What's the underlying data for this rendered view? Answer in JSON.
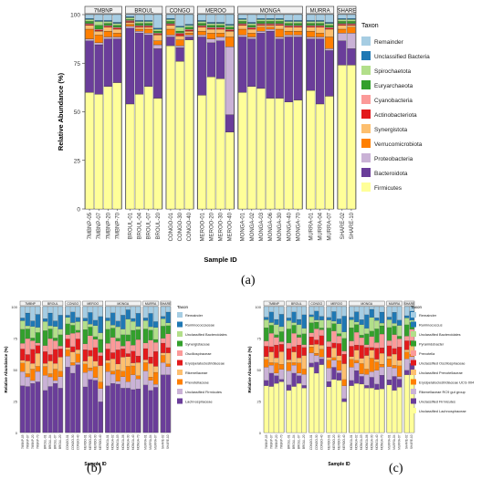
{
  "panel_labels": [
    "(a)",
    "(b)",
    "(c)"
  ],
  "colors": {
    "Remainder": "#a6cde3",
    "Unclassified Bacteria": "#1f78b4",
    "Spirochaetota": "#b2df8a",
    "Euryarchaeota": "#33a02c",
    "Cyanobacteria": "#fb9a99",
    "Actinobacteriota": "#e31a1c",
    "Synergistota": "#fdbf6f",
    "Verrucomicrobiota": "#ff7f00",
    "Proteobacteria": "#cab2d6",
    "Bacteroidota": "#6a3d9a",
    "Firmicutes": "#ffff99"
  },
  "chart_data": [
    {
      "type": "bar",
      "stacked": true,
      "xlabel": "Sample ID",
      "ylabel": "Relative Abundance (%)",
      "ylim": [
        0,
        100
      ],
      "yticks": [
        "0",
        "25",
        "50",
        "75",
        "100"
      ],
      "legend_title": "Taxon",
      "legend_position": "right",
      "groups": [
        {
          "name": "7MBNP",
          "samples": [
            "7MBNP-05",
            "7MBNP-07",
            "7MBNP-20",
            "7MBNP-70"
          ]
        },
        {
          "name": "BROUL",
          "samples": [
            "BROUL-01",
            "BROUL-04",
            "BROUL-07",
            "BROUL-20"
          ]
        },
        {
          "name": "CONGO",
          "samples": [
            "CONGO-01",
            "CONGO-30",
            "CONGO-40"
          ]
        },
        {
          "name": "MEROO",
          "samples": [
            "MEROO-01",
            "MEROO-20",
            "MEROO-30",
            "MEROO-40"
          ]
        },
        {
          "name": "MONGA",
          "samples": [
            "MONGA-01",
            "MONGA-02",
            "MONGA-03",
            "MONGA-06",
            "MONGA-30",
            "MONGA-40",
            "MONGA-70"
          ]
        },
        {
          "name": "MURRA",
          "samples": [
            "MURRA-01",
            "MURRA-04",
            "MURRA-07"
          ]
        },
        {
          "name": "SHARE",
          "samples": [
            "SHARE-02",
            "SHARE-10"
          ]
        }
      ],
      "taxa": [
        "Remainder",
        "Unclassified Bacteria",
        "Spirochaetota",
        "Euryarchaeota",
        "Cyanobacteria",
        "Actinobacteriota",
        "Synergistota",
        "Verrucomicrobiota",
        "Proteobacteria",
        "Bacteroidota",
        "Firmicutes"
      ],
      "stack_order_bottom_up": [
        "Firmicutes",
        "Bacteroidota",
        "Proteobacteria",
        "Verrucomicrobiota",
        "Synergistota",
        "Actinobacteriota",
        "Cyanobacteria",
        "Euryarchaeota",
        "Spirochaetota",
        "Unclassified Bacteria",
        "Remainder"
      ],
      "values": {
        "7MBNP-05": [
          2,
          0.5,
          1,
          1,
          0.5,
          0.5,
          2,
          5,
          1,
          26.5,
          60
        ],
        "7MBNP-07": [
          3,
          0.5,
          2,
          2,
          0.5,
          0.5,
          2,
          4,
          1,
          25.5,
          59
        ],
        "7MBNP-20": [
          3,
          0.5,
          1,
          1,
          0.5,
          0.5,
          2,
          3,
          1,
          24.5,
          63
        ],
        "7MBNP-70": [
          4,
          0.5,
          1,
          1,
          0.5,
          0.5,
          2,
          2,
          1,
          22.5,
          65
        ],
        "BROUL-01": [
          1,
          0.5,
          1,
          0.5,
          0.5,
          0.5,
          1,
          1,
          1,
          39,
          54
        ],
        "BROUL-04": [
          3,
          0.5,
          1,
          1,
          0.5,
          0.5,
          1,
          1,
          1,
          31.5,
          59
        ],
        "BROUL-07": [
          3,
          0.5,
          1,
          1,
          0.5,
          0.5,
          1,
          2,
          1,
          26.5,
          63
        ],
        "BROUL-20": [
          7,
          0.5,
          1,
          1,
          0.5,
          0.5,
          3,
          2,
          2,
          25.5,
          57
        ],
        "CONGO-01": [
          2,
          0.5,
          1,
          1,
          0.5,
          0.5,
          2,
          3,
          1,
          4.5,
          84
        ],
        "CONGO-30": [
          6,
          0.5,
          2,
          1,
          0.5,
          1,
          2,
          3,
          1,
          7,
          76
        ],
        "CONGO-40": [
          5,
          0.5,
          1,
          1,
          0.5,
          0.5,
          1,
          1,
          1,
          1.5,
          87
        ],
        "MEROO-01": [
          3,
          0.5,
          1,
          1,
          0.5,
          0.5,
          2,
          2,
          1,
          30,
          58.5
        ],
        "MEROO-20": [
          4,
          0.5,
          1,
          1,
          0.5,
          0.5,
          2,
          3,
          2,
          17.5,
          68
        ],
        "MEROO-30": [
          4,
          0.5,
          1,
          1,
          0.5,
          0.5,
          2,
          2,
          2,
          19.5,
          67
        ],
        "MEROO-40": [
          5,
          0.5,
          1,
          1,
          0.5,
          0.5,
          3,
          5,
          35,
          9,
          39.5
        ],
        "MONGA-01": [
          2,
          0.5,
          1,
          1,
          0.5,
          0.5,
          2,
          3,
          1,
          28.5,
          60
        ],
        "MONGA-02": [
          4,
          0.5,
          1,
          1,
          0.5,
          0.5,
          2,
          2,
          1,
          24.5,
          63
        ],
        "MONGA-03": [
          2,
          0.5,
          1,
          1,
          0.5,
          0.5,
          1,
          2,
          1,
          28.5,
          62
        ],
        "MONGA-06": [
          2,
          0.5,
          1,
          1,
          0.5,
          0.5,
          1,
          1,
          1,
          34.5,
          57
        ],
        "MONGA-30": [
          2,
          0.5,
          1,
          1,
          0.5,
          0.5,
          2,
          4,
          1,
          30.5,
          57
        ],
        "MONGA-40": [
          3,
          0.5,
          1,
          1,
          0.5,
          0.5,
          2,
          2,
          1,
          33.5,
          55
        ],
        "MONGA-70": [
          3,
          0.5,
          1,
          1,
          0.5,
          0.5,
          2,
          2,
          1,
          32.5,
          56
        ],
        "MURRA-01": [
          3,
          0.5,
          1,
          1,
          0.5,
          0.5,
          2,
          3,
          1,
          26.5,
          61
        ],
        "MURRA-04": [
          3,
          0.5,
          1,
          1,
          0.5,
          0.5,
          3,
          2,
          1,
          33.5,
          54
        ],
        "MURRA-07": [
          4,
          0.5,
          1,
          1,
          0.5,
          0.5,
          4,
          6,
          1,
          23.5,
          58
        ],
        "SHARE-02": [
          2,
          0.5,
          1,
          1,
          0.5,
          0.5,
          2,
          2,
          4,
          12.5,
          74
        ],
        "SHARE-10": [
          2,
          0.5,
          1,
          1,
          0.5,
          0.5,
          1,
          3,
          8,
          8.5,
          74
        ]
      }
    },
    {
      "type": "bar",
      "stacked": true,
      "xlabel": "Sample ID",
      "ylabel": "Relative Abundance (%)",
      "ylim": [
        0,
        100
      ],
      "yticks": [
        "0",
        "25",
        "50",
        "75",
        "100"
      ],
      "legend_title": "Taxon",
      "legend_position": "right",
      "taxa": [
        "Remainder",
        "Ruminococcaceae",
        "Unclassified Bacteroidales",
        "Synergistaceae",
        "Oscillospiraceae",
        "Erysipelatoclostridiaceae",
        "Rikenellaceae",
        "Prevotellaceae",
        "Unclassified Firmicutes",
        "Lachnospiraceae"
      ]
    },
    {
      "type": "bar",
      "stacked": true,
      "xlabel": "Sample ID",
      "ylabel": "Relative Abundance (%)",
      "ylim": [
        0,
        100
      ],
      "yticks": [
        "0",
        "25",
        "50",
        "75",
        "100"
      ],
      "legend_title": "Taxon",
      "legend_position": "right",
      "taxa": [
        "Remainder",
        "Ruminococcus",
        "Unclassified Bacteroidales",
        "Pyramidobacter",
        "Prevotella",
        "Unclassified Oscillospiraceae",
        "Unclassified Prevotellaceae",
        "Erysipelatoclostridiaceae UCG 004",
        "Rikenellaceae RC9 gut group",
        "Unclassified Firmicutes",
        "Unclassified Lachnospiraceae"
      ]
    }
  ]
}
